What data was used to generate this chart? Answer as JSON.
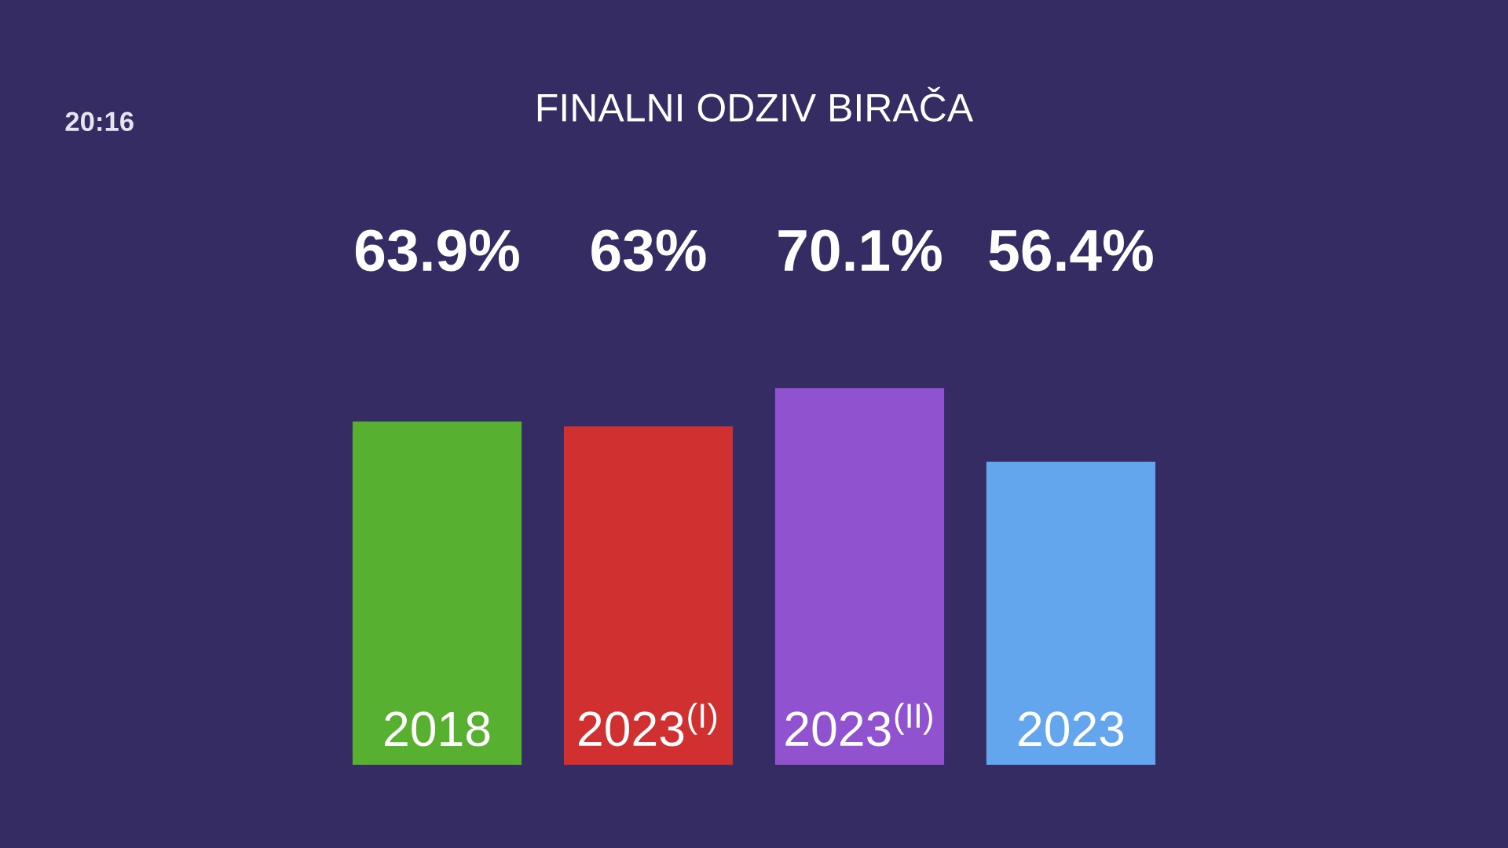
{
  "chart_data": {
    "type": "bar",
    "title": "FINALNI ODZIV BIRAČA",
    "categories": [
      "2018",
      "2023$^{(I)}$",
      "2023$^{(II)}$",
      "2023"
    ],
    "values": [
      63.9,
      63,
      70.1,
      56.4
    ],
    "colors": [
      "#57b030",
      "#d03130",
      "#9152d0",
      "#64a6ee"
    ],
    "value_labels": [
      "63.9%",
      "63%",
      "70.1%",
      "56.4%"
    ],
    "annotations": [
      "20:16"
    ]
  }
}
